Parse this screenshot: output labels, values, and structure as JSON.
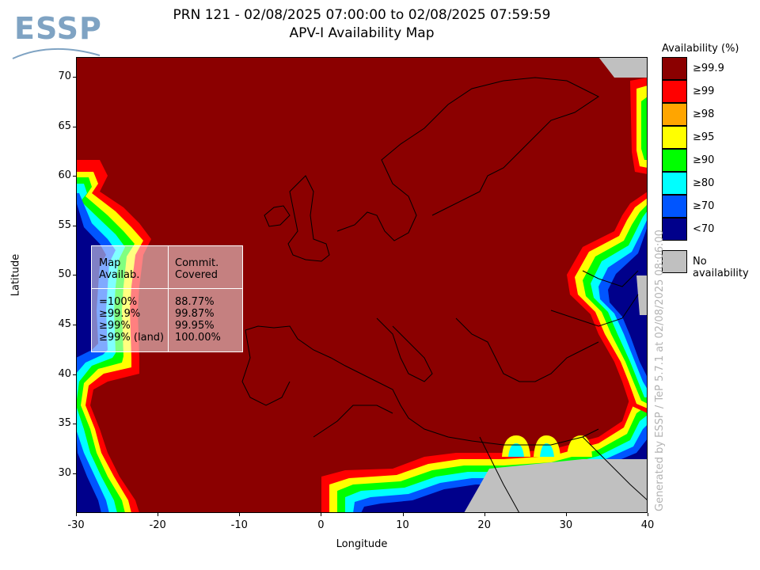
{
  "logo": {
    "text": "ESSP"
  },
  "title": {
    "line1": "PRN 121 - 02/08/2025 07:00:00 to 02/08/2025 07:59:59",
    "line2": "APV-I Availability Map"
  },
  "axes": {
    "xlabel": "Longitude",
    "ylabel": "Latitude",
    "xticks": [
      "-30",
      "-20",
      "-10",
      "0",
      "10",
      "20",
      "30",
      "40"
    ],
    "yticks": [
      "70",
      "65",
      "60",
      "55",
      "50",
      "45",
      "40",
      "35",
      "30"
    ]
  },
  "infobox": {
    "col1_header": "Map\nAvailab.",
    "col2_header": "Commit.\nCovered",
    "rows": [
      {
        "label": "=100%",
        "value": "88.77%"
      },
      {
        "label": "≥99.9%",
        "value": "99.87%"
      },
      {
        "label": "≥99%",
        "value": "99.95%"
      },
      {
        "label": "≥99% (land)",
        "value": "100.00%"
      }
    ]
  },
  "legend": {
    "title": "Availability (%)",
    "items": [
      {
        "label": "≥99.9",
        "color": "#8b0000"
      },
      {
        "label": "≥99",
        "color": "#ff0000"
      },
      {
        "label": "≥98",
        "color": "#ffa500"
      },
      {
        "label": "≥95",
        "color": "#ffff00"
      },
      {
        "label": "≥90",
        "color": "#00ff00"
      },
      {
        "label": "≥80",
        "color": "#00ffff"
      },
      {
        "label": "≥70",
        "color": "#0055ff"
      },
      {
        "label": "<70",
        "color": "#00008b"
      }
    ],
    "no_availability": {
      "label": "No availability",
      "color": "#c0c0c0"
    }
  },
  "footer": "Generated by ESSP / TeP 5.7.1 at 02/08/2025 08:06:00",
  "map": {
    "lon_range": [
      -30,
      40
    ],
    "lat_range": [
      26,
      72
    ],
    "background_color": "#8b0000",
    "coastline_color": "#000000"
  }
}
